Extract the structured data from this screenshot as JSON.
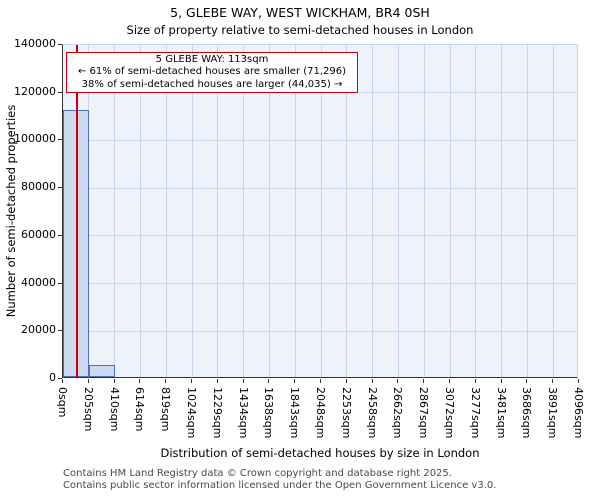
{
  "page": {
    "footer_line1": "Contains HM Land Registry data © Crown copyright and database right 2025.",
    "footer_line2": "Contains public sector information licensed under the Open Government Licence v3.0."
  },
  "chart_data": {
    "type": "bar",
    "title": "5, GLEBE WAY, WEST WICKHAM, BR4 0SH",
    "subtitle": "Size of property relative to semi-detached houses in London",
    "xlabel": "Distribution of semi-detached houses by size in London",
    "ylabel": "Number of semi-detached properties",
    "x_tick_labels": [
      "0sqm",
      "205sqm",
      "410sqm",
      "614sqm",
      "819sqm",
      "1024sqm",
      "1229sqm",
      "1434sqm",
      "1638sqm",
      "1843sqm",
      "2048sqm",
      "2253sqm",
      "2458sqm",
      "2662sqm",
      "2867sqm",
      "3072sqm",
      "3277sqm",
      "3481sqm",
      "3686sqm",
      "3891sqm",
      "4096sqm"
    ],
    "x_range_sqm": [
      0,
      4096
    ],
    "bin_width_sqm": 204.8,
    "y_ticks": [
      0,
      20000,
      40000,
      60000,
      80000,
      100000,
      120000,
      140000
    ],
    "ylim": [
      0,
      140000
    ],
    "grid": true,
    "values": [
      111800,
      4900,
      0,
      0,
      0,
      0,
      0,
      0,
      0,
      0,
      0,
      0,
      0,
      0,
      0,
      0,
      0,
      0,
      0,
      0
    ],
    "marker": {
      "x_sqm": 113,
      "smaller_pct": 61,
      "smaller_count": 71296,
      "larger_pct": 38,
      "larger_count": 44035
    },
    "annotation": {
      "line1": "5 GLEBE WAY: 113sqm",
      "line2": "← 61% of semi-detached houses are smaller (71,296)",
      "line3": "38% of semi-detached houses are larger (44,035) →"
    },
    "colors": {
      "bar_fill": "#ccd9f1",
      "bar_edge": "#4a72b8",
      "grid": "#c9d5ec",
      "plot_bg": "#eef2fb",
      "marker": "#cc0000"
    }
  }
}
